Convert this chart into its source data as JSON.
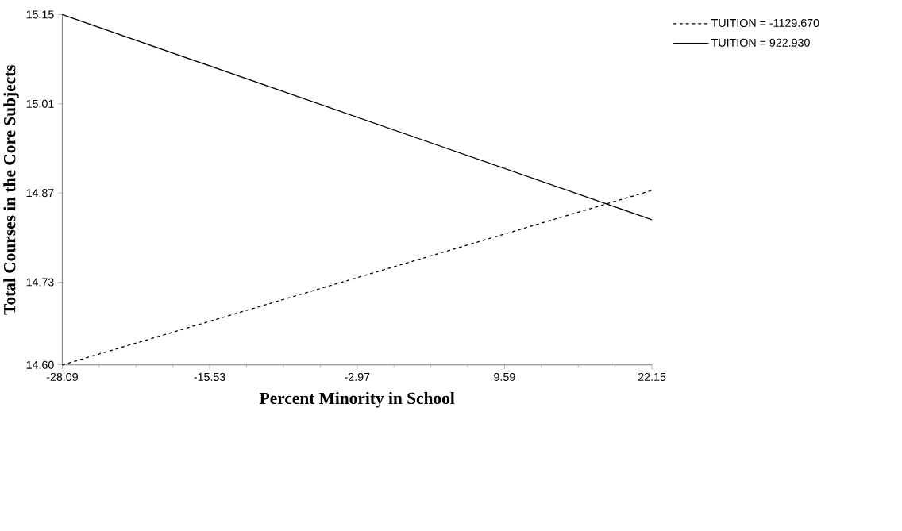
{
  "chart_data": {
    "type": "line",
    "xlabel": "Percent Minority in School",
    "ylabel": "Total Courses in the Core Subjects",
    "x": [
      -28.09,
      22.15
    ],
    "series": [
      {
        "name": "TUITION = -1129.670",
        "color": "#000000",
        "line_style": "dashed",
        "values": [
          14.6,
          14.874
        ]
      },
      {
        "name": "TUITION = 922.930",
        "color": "#000000",
        "line_style": "solid",
        "values": [
          15.15,
          14.828
        ]
      }
    ],
    "xlim": [
      -28.09,
      22.15
    ],
    "ylim": [
      14.6,
      15.15
    ],
    "xticks": [
      -28.09,
      -15.53,
      -2.97,
      9.59,
      22.15
    ],
    "yticks": [
      {
        "value": 14.6,
        "label": "14.60"
      },
      14.73,
      14.87,
      15.01,
      15.15
    ],
    "grid": false,
    "legend": "top right",
    "marker": "none"
  }
}
